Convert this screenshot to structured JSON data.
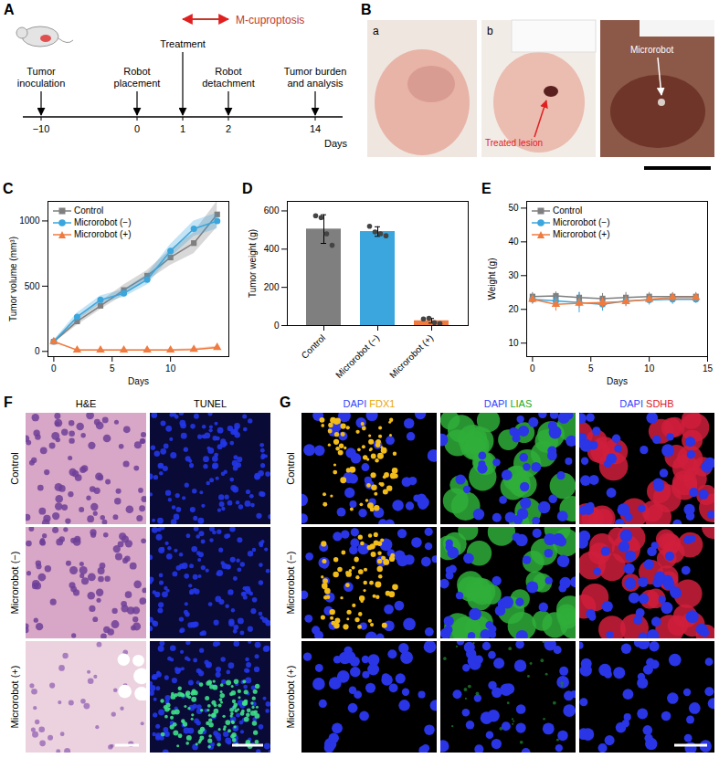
{
  "figure": {
    "A": {
      "panel": "A",
      "annotation": "M-cuproptosis",
      "axis_label": "Days",
      "events": [
        {
          "day": "−10",
          "label": "Tumor inoculation"
        },
        {
          "day": "0",
          "label": "Robot placement"
        },
        {
          "day": "1",
          "label": "Treatment"
        },
        {
          "day": "2",
          "label": "Robot detachment"
        },
        {
          "day": "14",
          "label": "Tumor burden and analysis"
        }
      ]
    },
    "B": {
      "panel": "B",
      "photo_labels": [
        "a",
        "b"
      ],
      "annotations": [
        "Treated lesion",
        "Microrobot"
      ]
    },
    "F": {
      "panel": "F",
      "columns": [
        "H&E",
        "TUNEL"
      ],
      "rows": [
        "Control",
        "Microrobot (−)",
        "Microrobot (+)"
      ]
    },
    "G": {
      "panel": "G",
      "columns": [
        [
          {
            "text": "DAPI",
            "color": "#3344ff"
          },
          {
            "text": "FDX1",
            "color": "#e8a800"
          }
        ],
        [
          {
            "text": "DAPI",
            "color": "#3344ff"
          },
          {
            "text": "LIAS",
            "color": "#22aa22"
          }
        ],
        [
          {
            "text": "DAPI",
            "color": "#3344ff"
          },
          {
            "text": "SDHB",
            "color": "#e02020"
          }
        ]
      ],
      "rows": [
        "Control",
        "Microrobot (−)",
        "Microrobot (+)"
      ]
    }
  },
  "chart_data": [
    {
      "panel": "C",
      "type": "line",
      "x_label": "Days",
      "y_label": "Tumor volume (mm³)",
      "x": [
        0,
        2,
        4,
        6,
        8,
        10,
        12,
        14
      ],
      "series": [
        {
          "name": "Control",
          "color": "#7f7f7f",
          "marker": "square",
          "values": [
            75,
            230,
            350,
            470,
            580,
            720,
            830,
            1050
          ],
          "band": [
            10,
            30,
            30,
            40,
            40,
            60,
            80,
            100
          ]
        },
        {
          "name": "Microrobot (−)",
          "color": "#3aa6dd",
          "marker": "circle",
          "values": [
            75,
            265,
            395,
            445,
            550,
            770,
            940,
            1000
          ],
          "band": [
            10,
            30,
            30,
            30,
            40,
            50,
            60,
            60
          ]
        },
        {
          "name": "Microrobot (+)",
          "color": "#f07b3f",
          "marker": "triangle",
          "values": [
            75,
            10,
            10,
            10,
            10,
            10,
            15,
            30
          ],
          "band": [
            5,
            5,
            5,
            5,
            5,
            5,
            8,
            10
          ]
        }
      ],
      "xlim": [
        -0.5,
        15
      ],
      "xticks": [
        0,
        5,
        10
      ],
      "ylim": [
        -40,
        1150
      ],
      "yticks": [
        0,
        500,
        1000
      ],
      "legend": "top-left"
    },
    {
      "panel": "D",
      "type": "bar",
      "y_label": "Tumor weight (g)",
      "categories": [
        "Control",
        "Microrobot (−)",
        "Microrobot (+)"
      ],
      "values": [
        505,
        492,
        25
      ],
      "errors": [
        75,
        25,
        12
      ],
      "points": [
        [
          575,
          565,
          480,
          420
        ],
        [
          520,
          490,
          480,
          470
        ],
        [
          35,
          38,
          15,
          10
        ]
      ],
      "colors": [
        "#7f7f7f",
        "#3aa6dd",
        "#f07b3f"
      ],
      "ylim": [
        0,
        650
      ],
      "yticks": [
        0,
        200,
        400,
        600
      ]
    },
    {
      "panel": "E",
      "type": "line",
      "x_label": "Days",
      "y_label": "Weight (g)",
      "x": [
        0,
        2,
        4,
        6,
        8,
        10,
        12,
        14
      ],
      "series": [
        {
          "name": "Control",
          "color": "#7f7f7f",
          "marker": "square",
          "values": [
            23.8,
            24,
            23.5,
            23.2,
            23.5,
            23.8,
            23.8,
            23.8
          ],
          "errors": [
            1.2,
            1.2,
            1.5,
            1.5,
            1.5,
            1.2,
            1.2,
            1.2
          ]
        },
        {
          "name": "Microrobot (−)",
          "color": "#3aa6dd",
          "marker": "circle",
          "values": [
            23,
            22.5,
            22,
            21.5,
            22.5,
            22.8,
            23,
            23
          ],
          "errors": [
            1.5,
            1.5,
            3,
            2,
            1.5,
            1.5,
            1.5,
            1.2
          ]
        },
        {
          "name": "Microrobot (+)",
          "color": "#f07b3f",
          "marker": "triangle",
          "values": [
            23,
            21.5,
            21.8,
            22,
            22.3,
            23,
            23.5,
            23.5
          ],
          "errors": [
            1.2,
            2,
            1.5,
            1.5,
            1.5,
            1.2,
            1.2,
            1.2
          ]
        }
      ],
      "xlim": [
        -0.5,
        15
      ],
      "xticks": [
        0,
        5,
        10,
        15
      ],
      "ylim": [
        6,
        52
      ],
      "yticks": [
        10,
        20,
        30,
        40,
        50
      ],
      "legend": "top-left"
    }
  ]
}
